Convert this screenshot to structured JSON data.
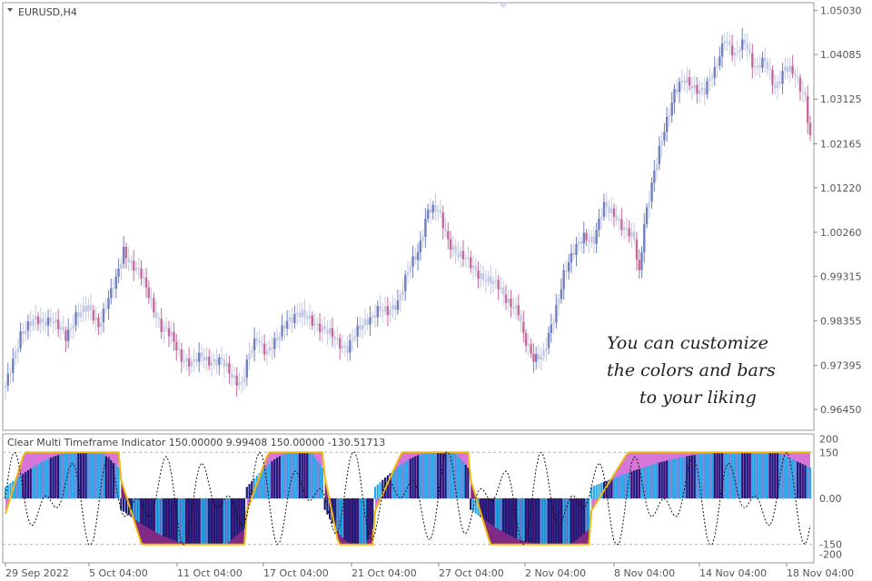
{
  "main": {
    "symbol_label": "EURUSD,H4",
    "y_ticks": [
      "1.05030",
      "1.04085",
      "1.03125",
      "1.02165",
      "1.01220",
      "1.00260",
      "0.99315",
      "0.98355",
      "0.97395",
      "0.96450"
    ],
    "annotation": [
      "You can customize",
      "the colors and bars",
      "to your liking"
    ]
  },
  "indicator": {
    "label": "Clear Multi Timeframe Indicator 150.00000 9.99408 150.00000 -130.51713",
    "y_ticks": [
      "200",
      "150",
      "0.00",
      "-150",
      "-200"
    ]
  },
  "x_ticks": [
    "29 Sep 2022",
    "5 Oct 04:00",
    "11 Oct 04:00",
    "17 Oct 04:00",
    "21 Oct 04:00",
    "27 Oct 04:00",
    "2 Nov 04:00",
    "8 Nov 04:00",
    "14 Nov 04:00",
    "18 Nov 04:00"
  ],
  "colors": {
    "bull": "#6f7fc0",
    "bear": "#c8689a",
    "doji": "#c3c8e4",
    "magenta": "#d36fd6",
    "purple": "#7a1f7e",
    "navy": "#1a1a78",
    "cyan": "#27a8e8",
    "gold": "#f2b90f"
  },
  "chart_data": [
    {
      "type": "candlestick",
      "title": "EURUSD,H4",
      "ylim": [
        0.96,
        1.052
      ],
      "y_tick_values": [
        1.0503,
        1.04085,
        1.03125,
        1.02165,
        1.0122,
        1.0026,
        0.99315,
        0.98355,
        0.97395,
        0.9645
      ],
      "close_path": [
        [
          0,
          0.969
        ],
        [
          6,
          0.981
        ],
        [
          12,
          0.9835
        ],
        [
          18,
          0.984
        ],
        [
          24,
          0.98
        ],
        [
          28,
          0.985
        ],
        [
          33,
          0.986
        ],
        [
          37,
          0.983
        ],
        [
          40,
          0.987
        ],
        [
          44,
          0.992
        ],
        [
          47,
          0.999
        ],
        [
          50,
          0.996
        ],
        [
          54,
          0.993
        ],
        [
          58,
          0.988
        ],
        [
          62,
          0.982
        ],
        [
          66,
          0.98
        ],
        [
          70,
          0.976
        ],
        [
          74,
          0.974
        ],
        [
          78,
          0.976
        ],
        [
          82,
          0.975
        ],
        [
          86,
          0.9745
        ],
        [
          90,
          0.972
        ],
        [
          94,
          0.97
        ],
        [
          97,
          0.976
        ],
        [
          100,
          0.98
        ],
        [
          104,
          0.977
        ],
        [
          108,
          0.979
        ],
        [
          112,
          0.984
        ],
        [
          116,
          0.985
        ],
        [
          120,
          0.984
        ],
        [
          124,
          0.983
        ],
        [
          128,
          0.981
        ],
        [
          132,
          0.979
        ],
        [
          136,
          0.978
        ],
        [
          140,
          0.981
        ],
        [
          144,
          0.984
        ],
        [
          148,
          0.986
        ],
        [
          152,
          0.985
        ],
        [
          156,
          0.988
        ],
        [
          160,
          0.994
        ],
        [
          164,
          0.998
        ],
        [
          168,
          1.008
        ],
        [
          172,
          1.007
        ],
        [
          176,
          1.001
        ],
        [
          180,
          0.998
        ],
        [
          184,
          0.996
        ],
        [
          188,
          0.994
        ],
        [
          192,
          0.992
        ],
        [
          196,
          0.991
        ],
        [
          200,
          0.988
        ],
        [
          204,
          0.985
        ],
        [
          206,
          0.98
        ],
        [
          210,
          0.976
        ],
        [
          214,
          0.976
        ],
        [
          218,
          0.984
        ],
        [
          222,
          0.994
        ],
        [
          226,
          0.998
        ],
        [
          230,
          1.002
        ],
        [
          234,
          1.001
        ],
        [
          238,
          1.008
        ],
        [
          242,
          1.007
        ],
        [
          246,
          1.003
        ],
        [
          250,
          1.001
        ],
        [
          252,
          0.994
        ],
        [
          254,
          1.005
        ],
        [
          258,
          1.015
        ],
        [
          262,
          1.025
        ],
        [
          266,
          1.033
        ],
        [
          270,
          1.035
        ],
        [
          274,
          1.034
        ],
        [
          278,
          1.033
        ],
        [
          282,
          1.037
        ],
        [
          286,
          1.045
        ],
        [
          290,
          1.04
        ],
        [
          294,
          1.044
        ],
        [
          298,
          1.038
        ],
        [
          302,
          1.039
        ],
        [
          306,
          1.034
        ],
        [
          310,
          1.038
        ],
        [
          314,
          1.036
        ],
        [
          318,
          1.032
        ],
        [
          320,
          1.023
        ]
      ],
      "x_tick_labels": [
        "29 Sep 2022",
        "5 Oct 04:00",
        "11 Oct 04:00",
        "17 Oct 04:00",
        "21 Oct 04:00",
        "27 Oct 04:00",
        "2 Nov 04:00",
        "8 Nov 04:00",
        "14 Nov 04:00",
        "18 Nov 04:00"
      ]
    },
    {
      "type": "histogram",
      "title": "Clear Multi Timeframe Indicator 150.00000 9.99408 150.00000 -130.51713",
      "ylim": [
        -210,
        210
      ],
      "levels": [
        150,
        0,
        -150
      ],
      "y_tick_labels": [
        "200",
        "150",
        "0.00",
        "-150",
        "-200"
      ],
      "segments": [
        {
          "from": 0,
          "to": 45,
          "sign": 1,
          "from_value": -50,
          "peak": 150
        },
        {
          "from": 46,
          "to": 95,
          "sign": -1,
          "from_value": 60,
          "peak": -150
        },
        {
          "from": 96,
          "to": 126,
          "sign": 1,
          "from_value": -40,
          "peak": 150
        },
        {
          "from": 127,
          "to": 146,
          "sign": -1,
          "from_value": 70,
          "peak": -150
        },
        {
          "from": 147,
          "to": 184,
          "sign": 1,
          "from_value": -40,
          "peak": 150
        },
        {
          "from": 185,
          "to": 232,
          "sign": -1,
          "from_value": 60,
          "peak": -150
        },
        {
          "from": 233,
          "to": 320,
          "sign": 1,
          "from_value": -40,
          "peak": 150
        }
      ],
      "series": [
        {
          "name": "",
          "values_note": ""
        }
      ]
    }
  ]
}
